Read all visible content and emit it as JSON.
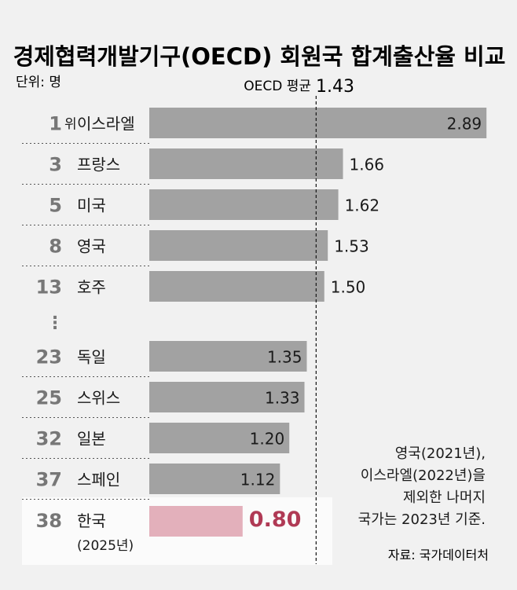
{
  "chart_data": {
    "type": "bar",
    "orientation": "horizontal",
    "title": "경제협력개발기구(OECD) 회원국 합계출산율 비교",
    "unit_label": "단위: 명",
    "reference": {
      "label": "OECD 평균",
      "value": 1.43,
      "value_text": "1.43"
    },
    "gap_marker": "⋮",
    "rows": [
      {
        "rank": "1",
        "rank_suffix": "위",
        "country": "이스라엘",
        "value": 2.89,
        "value_text": "2.89"
      },
      {
        "rank": "3",
        "country": "프랑스",
        "value": 1.66,
        "value_text": "1.66"
      },
      {
        "rank": "5",
        "country": "미국",
        "value": 1.62,
        "value_text": "1.62"
      },
      {
        "rank": "8",
        "country": "영국",
        "value": 1.53,
        "value_text": "1.53"
      },
      {
        "rank": "13",
        "country": "호주",
        "value": 1.5,
        "value_text": "1.50"
      },
      {
        "rank": "23",
        "country": "독일",
        "value": 1.35,
        "value_text": "1.35"
      },
      {
        "rank": "25",
        "country": "스위스",
        "value": 1.33,
        "value_text": "1.33"
      },
      {
        "rank": "32",
        "country": "일본",
        "value": 1.2,
        "value_text": "1.20"
      },
      {
        "rank": "37",
        "country": "스페인",
        "value": 1.12,
        "value_text": "1.12"
      },
      {
        "rank": "38",
        "country": "한국",
        "country_sub": "(2025년)",
        "value": 0.8,
        "value_text": "0.80",
        "highlight": true
      }
    ],
    "footnote_lines": [
      "영국(2021년),",
      "이스라엘(2022년)을",
      "제외한 나머지",
      "국가는 2023년 기준."
    ],
    "source": "자료: 국가데이터처",
    "colors": {
      "background": "#f1f1f1",
      "bar": "#a2a2a2",
      "highlight_bar": "#e3b0bb",
      "highlight_value": "#b03a55",
      "highlight_row_bg": "#fbfbfb",
      "rank_text": "#777777",
      "text": "#1a1a1a"
    }
  }
}
